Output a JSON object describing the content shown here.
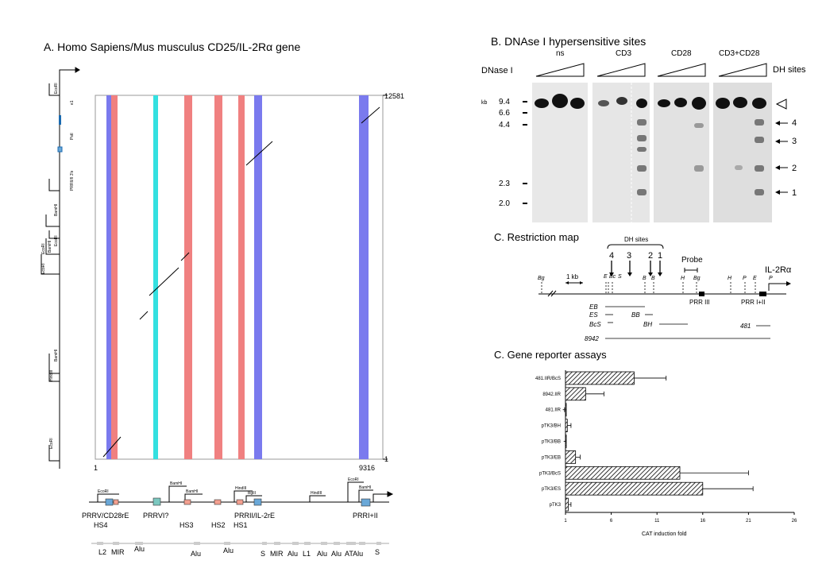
{
  "panelA": {
    "title": "A. Homo Sapiens/Mus musculus CD25/IL-2Rα gene",
    "axis": {
      "x_start": "1",
      "x_end": "9316",
      "y_top": "12581",
      "y_bottom": "1"
    },
    "left_sites": [
      "EcoRI",
      "e1",
      "PstI",
      "PRRII/II 3'e",
      "BamHI",
      "EcoRI",
      "BamHI",
      "EcoRI",
      "EcoRI",
      "HindIII",
      "BamHI",
      "EcoRI"
    ],
    "map_sites": [
      "EcoRI",
      "BamHI",
      "BamHI",
      "HindIII",
      "BglII",
      "HindIII",
      "EcoRI",
      "BamHI"
    ],
    "elements_row1": [
      "PRRV/CD28rE",
      "PRRVI?",
      "PRRII/IL-2rE",
      "PRRI+II"
    ],
    "elements_row2": [
      "HS4",
      "HS3",
      "HS2",
      "HS1"
    ],
    "repeats": [
      "L2",
      "MIR",
      "Alu",
      "Alu",
      "Alu",
      "S",
      "MIR",
      "Alu",
      "L1",
      "Alu",
      "Alu",
      "ATAlu",
      "S"
    ],
    "colors": {
      "blue": "#7a7aee",
      "cyan": "#33e0e0",
      "red": "#f08080",
      "box_blue": "#6aa8d8",
      "box_red": "#f4a090",
      "box_teal": "#7cc8c0"
    }
  },
  "panelB": {
    "title": "B. DNAse I hypersensitive sites",
    "dnase_label": "DNase I",
    "lanes": [
      "ns",
      "CD3",
      "CD28",
      "CD3+CD28"
    ],
    "dh_label": "DH sites",
    "kb_label": "kb",
    "sizes": [
      "9.4",
      "6.6",
      "4.4",
      "2.3",
      "2.0"
    ],
    "dh_numbers": [
      "4",
      "3",
      "2",
      "1"
    ]
  },
  "panelC1": {
    "title": "C. Restriction map",
    "dh_sites": "DH sites",
    "dh_nums": [
      "4",
      "3",
      "2",
      "1"
    ],
    "probe": "Probe",
    "gene": "IL-2Rα",
    "scale": "1 kb",
    "sites": [
      "Bg",
      "E",
      "Bc",
      "S",
      "B",
      "B",
      "H",
      "Bg",
      "H",
      "P",
      "E",
      "P"
    ],
    "prr_labels": [
      "PRR III",
      "PRR I+II"
    ],
    "fragments": [
      "EB",
      "ES",
      "BcS",
      "BB",
      "BH",
      "481",
      "8942"
    ]
  },
  "panelC2": {
    "title": "C. Gene reporter assays",
    "xlabel": "CAT induction fold",
    "ticks": [
      "1",
      "6",
      "11",
      "16",
      "21",
      "26"
    ]
  },
  "chart_data": {
    "type": "bar",
    "orientation": "horizontal",
    "categories": [
      "481.IIR/BcS",
      "8942.IIR",
      "481.IIR",
      "pTK3/BH",
      "pTK3/BB",
      "pTK3/EB",
      "pTK3/BcS",
      "pTK3/ES",
      "pTK3"
    ],
    "values": [
      8.5,
      3.2,
      0.7,
      1.2,
      0.8,
      2.1,
      13.5,
      16.0,
      1.3
    ],
    "errors": [
      3.5,
      2.0,
      0.2,
      0.4,
      0.2,
      0.5,
      7.5,
      5.5,
      0.3
    ],
    "xlabel": "CAT induction fold",
    "xlim": [
      1,
      26
    ],
    "xticks": [
      1,
      6,
      11,
      16,
      21,
      26
    ],
    "pattern": "hatched"
  }
}
